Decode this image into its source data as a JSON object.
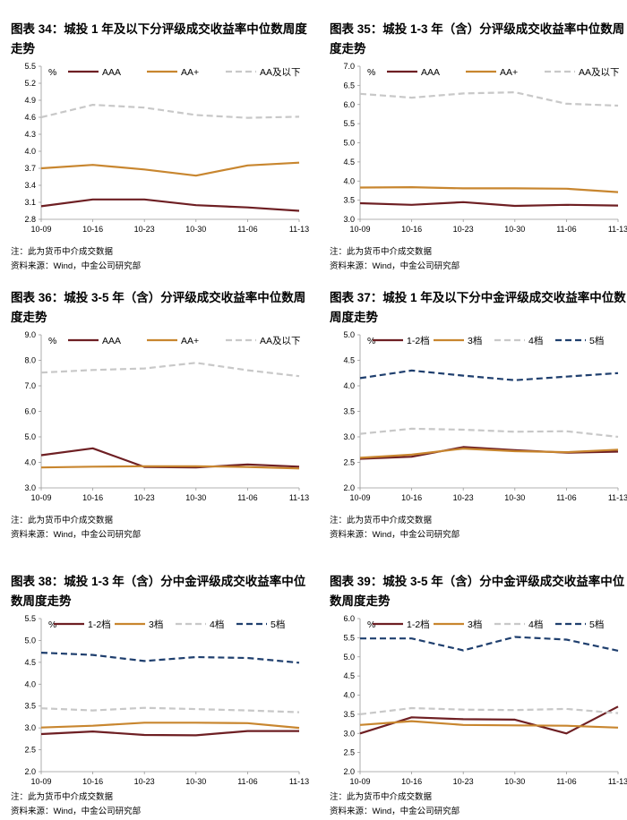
{
  "notes": {
    "note": "注：此为货币中介成交数据",
    "source": "资料来源：Wind，中金公司研究部"
  },
  "colors": {
    "AAA": "#6e1f23",
    "AA+": "#c8862f",
    "AA及以下": "#c8c8c8",
    "1-2档": "#6e1f23",
    "3档": "#c8862f",
    "4档": "#c8c8c8",
    "5档": "#1f3f6e"
  },
  "chart_data": [
    {
      "type": "line",
      "title": "图表 34：城投 1 年及以下分评级成交收益率中位数周度走势",
      "unit": "%",
      "categories": [
        "10-09",
        "10-16",
        "10-23",
        "10-30",
        "11-06",
        "11-13"
      ],
      "ylim": [
        2.8,
        5.5
      ],
      "yticks": [
        "2.8",
        "3.1",
        "3.4",
        "3.7",
        "4.0",
        "4.3",
        "4.6",
        "4.9",
        "5.2",
        "5.5"
      ],
      "series": [
        {
          "name": "AAA",
          "style": "solid",
          "values": [
            3.03,
            3.15,
            3.15,
            3.05,
            3.01,
            2.95
          ]
        },
        {
          "name": "AA+",
          "style": "solid",
          "values": [
            3.7,
            3.76,
            3.68,
            3.57,
            3.75,
            3.8
          ]
        },
        {
          "name": "AA及以下",
          "style": "dash",
          "values": [
            4.6,
            4.82,
            4.77,
            4.64,
            4.59,
            4.61
          ]
        }
      ]
    },
    {
      "type": "line",
      "title": "图表 35：城投 1-3 年（含）分评级成交收益率中位数周度走势",
      "unit": "%",
      "categories": [
        "10-09",
        "10-16",
        "10-23",
        "10-30",
        "11-06",
        "11-13"
      ],
      "ylim": [
        3.0,
        7.0
      ],
      "yticks": [
        "3.0",
        "3.5",
        "4.0",
        "4.5",
        "5.0",
        "5.5",
        "6.0",
        "6.5",
        "7.0"
      ],
      "series": [
        {
          "name": "AAA",
          "style": "solid",
          "values": [
            3.42,
            3.38,
            3.45,
            3.35,
            3.38,
            3.36
          ]
        },
        {
          "name": "AA+",
          "style": "solid",
          "values": [
            3.83,
            3.84,
            3.81,
            3.81,
            3.8,
            3.71
          ]
        },
        {
          "name": "AA及以下",
          "style": "dash",
          "values": [
            6.28,
            6.18,
            6.29,
            6.32,
            6.02,
            5.97
          ]
        }
      ]
    },
    {
      "type": "line",
      "title": "图表 36：城投 3-5 年（含）分评级成交收益率中位数周度走势",
      "unit": "%",
      "categories": [
        "10-09",
        "10-16",
        "10-23",
        "10-30",
        "11-06",
        "11-13"
      ],
      "ylim": [
        3.0,
        9.0
      ],
      "yticks": [
        "3.0",
        "4.0",
        "5.0",
        "6.0",
        "7.0",
        "8.0",
        "9.0"
      ],
      "series": [
        {
          "name": "AAA",
          "style": "solid",
          "values": [
            4.28,
            4.55,
            3.82,
            3.8,
            3.92,
            3.83
          ]
        },
        {
          "name": "AA+",
          "style": "solid",
          "values": [
            3.8,
            3.83,
            3.85,
            3.85,
            3.82,
            3.76
          ]
        },
        {
          "name": "AA及以下",
          "style": "dash",
          "values": [
            7.52,
            7.62,
            7.68,
            7.9,
            7.61,
            7.38
          ]
        }
      ]
    },
    {
      "type": "line",
      "title": "图表 37：城投 1 年及以下分中金评级成交收益率中位数周度走势",
      "unit": "%",
      "categories": [
        "10-09",
        "10-16",
        "10-23",
        "10-30",
        "11-06",
        "11-13"
      ],
      "ylim": [
        2.0,
        5.0
      ],
      "yticks": [
        "2.0",
        "2.5",
        "3.0",
        "3.5",
        "4.0",
        "4.5",
        "5.0"
      ],
      "series": [
        {
          "name": "1-2档",
          "style": "solid",
          "values": [
            2.57,
            2.61,
            2.8,
            2.74,
            2.69,
            2.71
          ]
        },
        {
          "name": "3档",
          "style": "solid",
          "values": [
            2.59,
            2.65,
            2.77,
            2.72,
            2.7,
            2.75
          ]
        },
        {
          "name": "4档",
          "style": "dash",
          "values": [
            3.06,
            3.16,
            3.14,
            3.1,
            3.11,
            3.0
          ]
        },
        {
          "name": "5档",
          "style": "dash",
          "values": [
            4.15,
            4.3,
            4.2,
            4.11,
            4.18,
            4.25
          ]
        }
      ]
    },
    {
      "type": "line",
      "title": "图表 38：城投 1-3 年（含）分中金评级成交收益率中位数周度走势",
      "unit": "%",
      "categories": [
        "10-09",
        "10-16",
        "10-23",
        "10-30",
        "11-06",
        "11-13"
      ],
      "ylim": [
        2.0,
        5.5
      ],
      "yticks": [
        "2.0",
        "2.5",
        "3.0",
        "3.5",
        "4.0",
        "4.5",
        "5.0",
        "5.5"
      ],
      "series": [
        {
          "name": "1-2档",
          "style": "solid",
          "values": [
            2.86,
            2.92,
            2.84,
            2.83,
            2.93,
            2.93
          ]
        },
        {
          "name": "3档",
          "style": "solid",
          "values": [
            3.01,
            3.05,
            3.12,
            3.12,
            3.11,
            3.0
          ]
        },
        {
          "name": "4档",
          "style": "dash",
          "values": [
            3.45,
            3.4,
            3.46,
            3.43,
            3.4,
            3.36
          ]
        },
        {
          "name": "5档",
          "style": "dash",
          "values": [
            4.72,
            4.67,
            4.53,
            4.62,
            4.6,
            4.49
          ]
        }
      ]
    },
    {
      "type": "line",
      "title": "图表 39：城投 3-5 年（含）分中金评级成交收益率中位数周度走势",
      "unit": "%",
      "categories": [
        "10-09",
        "10-16",
        "10-23",
        "10-30",
        "11-06",
        "11-13"
      ],
      "ylim": [
        2.0,
        6.0
      ],
      "yticks": [
        "2.0",
        "2.5",
        "3.0",
        "3.5",
        "4.0",
        "4.5",
        "5.0",
        "5.5",
        "6.0"
      ],
      "series": [
        {
          "name": "1-2档",
          "style": "solid",
          "values": [
            3.0,
            3.42,
            3.37,
            3.36,
            3.0,
            3.7
          ]
        },
        {
          "name": "3档",
          "style": "solid",
          "values": [
            3.22,
            3.32,
            3.22,
            3.21,
            3.2,
            3.15
          ]
        },
        {
          "name": "4档",
          "style": "dash",
          "values": [
            3.5,
            3.66,
            3.62,
            3.61,
            3.64,
            3.53
          ]
        },
        {
          "name": "5档",
          "style": "dash",
          "values": [
            5.48,
            5.48,
            5.17,
            5.52,
            5.45,
            5.16
          ]
        }
      ]
    }
  ]
}
